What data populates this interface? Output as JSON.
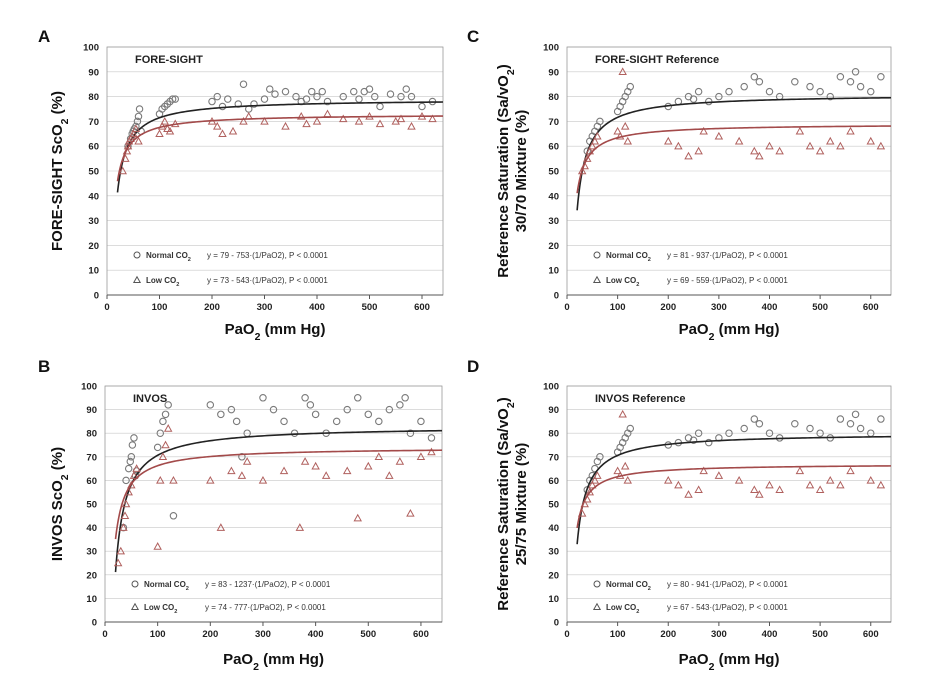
{
  "chart_data": [
    {
      "type": "scatter",
      "panel_label": "A",
      "title": "FORE-SIGHT",
      "ylabel_lines": [
        "FORE-SIGHT  ScO2 (%)"
      ],
      "xlabel": "PaO2 (mm Hg)",
      "xlim": [
        0,
        640
      ],
      "ylim": [
        0,
        100
      ],
      "xticks": [
        0,
        100,
        200,
        300,
        400,
        500,
        600
      ],
      "yticks": [
        0,
        10,
        20,
        30,
        40,
        50,
        60,
        70,
        80,
        90,
        100
      ],
      "grid": true,
      "legend_position": "bottom-left",
      "series": [
        {
          "name": "Normal CO2",
          "marker": "circle",
          "color": "#7a7a7a",
          "line_color": "#222222",
          "fit": {
            "a": 79,
            "b": 753,
            "xmin": 20,
            "xmax": 640
          },
          "equation": "y = 79 - 753·(1/PaO2), P < 0.0001",
          "x": [
            40,
            45,
            48,
            50,
            52,
            55,
            58,
            60,
            62,
            65,
            100,
            105,
            110,
            115,
            120,
            125,
            130,
            200,
            210,
            220,
            230,
            250,
            260,
            270,
            280,
            300,
            310,
            320,
            340,
            360,
            370,
            380,
            390,
            400,
            410,
            420,
            450,
            470,
            480,
            490,
            500,
            510,
            520,
            540,
            560,
            570,
            580,
            600,
            620
          ],
          "y": [
            60,
            63,
            65,
            66,
            67,
            68,
            70,
            72,
            75,
            66,
            73,
            75,
            76,
            77,
            78,
            79,
            79,
            78,
            80,
            76,
            79,
            77,
            85,
            75,
            77,
            79,
            83,
            81,
            82,
            80,
            78,
            79,
            82,
            80,
            82,
            78,
            80,
            82,
            79,
            82,
            83,
            80,
            76,
            81,
            80,
            83,
            80,
            76,
            78
          ]
        },
        {
          "name": "Low CO2",
          "marker": "triangle",
          "color": "#b0605e",
          "line_color": "#a34a4a",
          "fit": {
            "a": 73,
            "b": 543,
            "xmin": 20,
            "xmax": 640
          },
          "equation": "y = 73 - 543·(1/PaO2), P < 0.0001",
          "x": [
            30,
            35,
            38,
            40,
            42,
            45,
            48,
            50,
            55,
            60,
            100,
            105,
            110,
            115,
            120,
            130,
            200,
            210,
            220,
            240,
            260,
            270,
            300,
            340,
            370,
            380,
            400,
            420,
            450,
            480,
            500,
            520,
            550,
            560,
            580,
            600,
            620
          ],
          "y": [
            50,
            55,
            58,
            60,
            62,
            63,
            64,
            65,
            67,
            62,
            65,
            68,
            70,
            67,
            66,
            69,
            70,
            68,
            65,
            66,
            70,
            72,
            70,
            68,
            72,
            69,
            70,
            73,
            71,
            70,
            72,
            69,
            70,
            71,
            68,
            72,
            71
          ]
        }
      ]
    },
    {
      "type": "scatter",
      "panel_label": "C",
      "title": "FORE-SIGHT Reference",
      "ylabel_lines": [
        "Reference Saturation (Sa/vO2)",
        "30/70 Mixture (%)"
      ],
      "xlabel": "PaO2 (mm Hg)",
      "xlim": [
        0,
        640
      ],
      "ylim": [
        0,
        100
      ],
      "xticks": [
        0,
        100,
        200,
        300,
        400,
        500,
        600
      ],
      "yticks": [
        0,
        10,
        20,
        30,
        40,
        50,
        60,
        70,
        80,
        90,
        100
      ],
      "grid": true,
      "legend_position": "bottom-left",
      "series": [
        {
          "name": "Normal CO2",
          "marker": "circle",
          "color": "#7a7a7a",
          "line_color": "#222222",
          "fit": {
            "a": 81,
            "b": 937,
            "xmin": 20,
            "xmax": 640
          },
          "equation": "y = 81 - 937·(1/PaO2), P < 0.0001",
          "x": [
            40,
            45,
            50,
            55,
            60,
            65,
            100,
            105,
            110,
            115,
            120,
            125,
            200,
            220,
            240,
            250,
            260,
            280,
            300,
            320,
            350,
            370,
            380,
            400,
            420,
            450,
            480,
            500,
            520,
            540,
            560,
            570,
            580,
            600,
            620
          ],
          "y": [
            58,
            62,
            64,
            66,
            68,
            70,
            74,
            76,
            78,
            80,
            82,
            84,
            76,
            78,
            80,
            79,
            82,
            78,
            80,
            82,
            84,
            88,
            86,
            82,
            80,
            86,
            84,
            82,
            80,
            88,
            86,
            90,
            84,
            82,
            88
          ],
          "outline_only": true
        },
        {
          "name": "Low CO2",
          "marker": "triangle",
          "color": "#b0605e",
          "line_color": "#a34a4a",
          "fit": {
            "a": 69,
            "b": 559,
            "xmin": 20,
            "xmax": 640
          },
          "equation": "y = 69 - 559·(1/PaO2), P < 0.0001",
          "x": [
            30,
            35,
            40,
            45,
            50,
            55,
            60,
            100,
            105,
            110,
            115,
            120,
            200,
            220,
            240,
            260,
            270,
            300,
            340,
            370,
            380,
            400,
            420,
            460,
            480,
            500,
            520,
            540,
            560,
            600,
            620
          ],
          "y": [
            50,
            52,
            55,
            58,
            60,
            62,
            64,
            66,
            64,
            90,
            68,
            62,
            62,
            60,
            56,
            58,
            66,
            64,
            62,
            58,
            56,
            60,
            58,
            66,
            60,
            58,
            62,
            60,
            66,
            62,
            60
          ],
          "outline_only": true
        }
      ]
    },
    {
      "type": "scatter",
      "panel_label": "B",
      "title": "INVOS",
      "ylabel_lines": [
        "INVOS  ScO2 (%)"
      ],
      "xlabel": "PaO2 (mm Hg)",
      "xlim": [
        0,
        640
      ],
      "ylim": [
        0,
        100
      ],
      "xticks": [
        0,
        100,
        200,
        300,
        400,
        500,
        600
      ],
      "yticks": [
        0,
        10,
        20,
        30,
        40,
        50,
        60,
        70,
        80,
        90,
        100
      ],
      "grid": true,
      "legend_position": "bottom-left",
      "series": [
        {
          "name": "Normal CO2",
          "marker": "circle",
          "color": "#7a7a7a",
          "line_color": "#222222",
          "fit": {
            "a": 83,
            "b": 1237,
            "xmin": 20,
            "xmax": 640
          },
          "equation": "y = 83 - 1237·(1/PaO2), P < 0.0001",
          "x": [
            35,
            40,
            45,
            48,
            50,
            52,
            55,
            58,
            60,
            100,
            105,
            110,
            115,
            120,
            130,
            200,
            220,
            240,
            250,
            260,
            270,
            300,
            320,
            340,
            360,
            380,
            390,
            400,
            420,
            440,
            460,
            480,
            500,
            520,
            540,
            560,
            570,
            580,
            600,
            620
          ],
          "y": [
            40,
            60,
            65,
            68,
            70,
            75,
            78,
            62,
            64,
            74,
            80,
            85,
            88,
            92,
            45,
            92,
            88,
            90,
            85,
            70,
            80,
            95,
            90,
            85,
            80,
            95,
            92,
            88,
            80,
            85,
            90,
            95,
            88,
            85,
            90,
            92,
            95,
            80,
            85,
            78
          ],
          "outline_only": true
        },
        {
          "name": "Low CO2",
          "marker": "triangle",
          "color": "#b0605e",
          "line_color": "#a34a4a",
          "fit": {
            "a": 74,
            "b": 777,
            "xmin": 20,
            "xmax": 640
          },
          "equation": "y = 74 - 777·(1/PaO2), P < 0.0001",
          "x": [
            25,
            30,
            35,
            38,
            40,
            45,
            50,
            55,
            60,
            100,
            105,
            110,
            115,
            120,
            130,
            200,
            220,
            240,
            260,
            270,
            300,
            340,
            370,
            380,
            400,
            420,
            460,
            480,
            500,
            520,
            540,
            560,
            580,
            600,
            620
          ],
          "y": [
            25,
            30,
            40,
            45,
            50,
            55,
            58,
            62,
            65,
            32,
            60,
            70,
            75,
            82,
            60,
            60,
            40,
            64,
            62,
            68,
            60,
            64,
            40,
            68,
            66,
            62,
            64,
            44,
            66,
            70,
            62,
            68,
            46,
            70,
            72
          ],
          "outline_only": true
        }
      ]
    },
    {
      "type": "scatter",
      "panel_label": "D",
      "title": "INVOS Reference",
      "ylabel_lines": [
        "Reference Saturation (Sa/vO2)",
        "25/75 Mixture (%)"
      ],
      "xlabel": "PaO2 (mm Hg)",
      "xlim": [
        0,
        640
      ],
      "ylim": [
        0,
        100
      ],
      "xticks": [
        0,
        100,
        200,
        300,
        400,
        500,
        600
      ],
      "yticks": [
        0,
        10,
        20,
        30,
        40,
        50,
        60,
        70,
        80,
        90,
        100
      ],
      "grid": true,
      "legend_position": "bottom-left",
      "series": [
        {
          "name": "Normal CO2",
          "marker": "circle",
          "color": "#7a7a7a",
          "line_color": "#222222",
          "fit": {
            "a": 80,
            "b": 941,
            "xmin": 20,
            "xmax": 640
          },
          "equation": "y = 80 - 941·(1/PaO2), P < 0.0001",
          "x": [
            40,
            45,
            50,
            55,
            60,
            65,
            100,
            105,
            110,
            115,
            120,
            125,
            200,
            220,
            240,
            250,
            260,
            280,
            300,
            320,
            350,
            370,
            380,
            400,
            420,
            450,
            480,
            500,
            520,
            540,
            560,
            570,
            580,
            600,
            620
          ],
          "y": [
            56,
            60,
            62,
            65,
            68,
            70,
            72,
            74,
            76,
            78,
            80,
            82,
            75,
            76,
            78,
            77,
            80,
            76,
            78,
            80,
            82,
            86,
            84,
            80,
            78,
            84,
            82,
            80,
            78,
            86,
            84,
            88,
            82,
            80,
            86
          ],
          "outline_only": true
        },
        {
          "name": "Low CO2",
          "marker": "triangle",
          "color": "#b0605e",
          "line_color": "#a34a4a",
          "fit": {
            "a": 67,
            "b": 543,
            "xmin": 20,
            "xmax": 640
          },
          "equation": "y = 67 - 543·(1/PaO2), P < 0.0001",
          "x": [
            30,
            35,
            40,
            45,
            50,
            55,
            60,
            100,
            105,
            110,
            115,
            120,
            200,
            220,
            240,
            260,
            270,
            300,
            340,
            370,
            380,
            400,
            420,
            460,
            480,
            500,
            520,
            540,
            560,
            600,
            620
          ],
          "y": [
            46,
            50,
            52,
            55,
            58,
            60,
            62,
            64,
            62,
            88,
            66,
            60,
            60,
            58,
            54,
            56,
            64,
            62,
            60,
            56,
            54,
            58,
            56,
            64,
            58,
            56,
            60,
            58,
            64,
            60,
            58
          ],
          "outline_only": true
        }
      ]
    }
  ]
}
